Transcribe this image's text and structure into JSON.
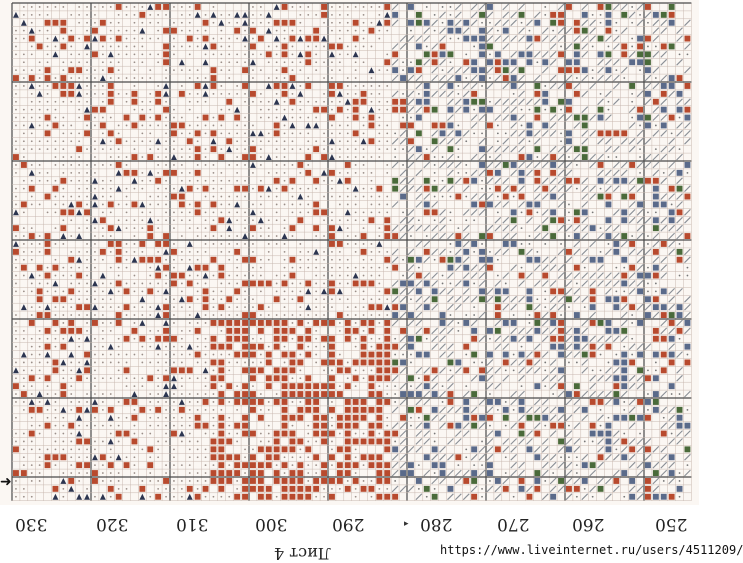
{
  "pattern": {
    "column_numbers": [
      "330",
      "320",
      "310",
      "300",
      "290",
      "280",
      "270",
      "260",
      "250"
    ],
    "sheet_label": "Лист 4",
    "watermark": "https://www.liveinternet.ru/users/4511209/",
    "arrow_glyph": "➜",
    "colors": {
      "paper": "#fbf7f3",
      "grid_minor": "#c8b8b0",
      "grid_major": "#4a4a4a",
      "red": "#b84a2e",
      "navy": "#2c3550",
      "blue_gray": "#5a6a8a",
      "green": "#4a6a3a",
      "gray": "#8a8f96"
    }
  }
}
